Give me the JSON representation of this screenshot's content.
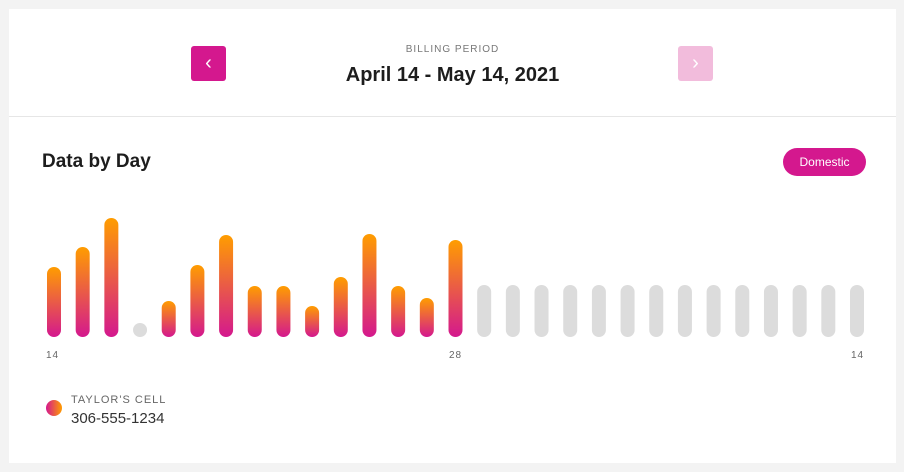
{
  "billing": {
    "label": "BILLING PERIOD",
    "value": "April 14 - May 14, 2021",
    "prev_icon": "chevron-left-icon",
    "next_icon": "chevron-right-icon",
    "next_enabled": false
  },
  "section": {
    "title": "Data by Day",
    "filter_label": "Domestic"
  },
  "colors": {
    "accent": "#d4188e",
    "gradient_top": "#ff9d00",
    "gradient_bottom": "#d4188e",
    "future": "#dcdcdc"
  },
  "chart_data": {
    "type": "bar",
    "x_tick_labels": [
      "14",
      "28",
      "14"
    ],
    "values_relative": [
      70,
      90,
      119,
      0,
      36,
      72,
      102,
      51,
      51,
      31,
      60,
      103,
      51,
      39,
      97,
      null,
      null,
      null,
      null,
      null,
      null,
      null,
      null,
      null,
      null,
      null,
      null,
      null,
      null
    ],
    "future_days": 14
  },
  "legend": {
    "label": "TAYLOR'S CELL",
    "value": "306-555-1234"
  }
}
